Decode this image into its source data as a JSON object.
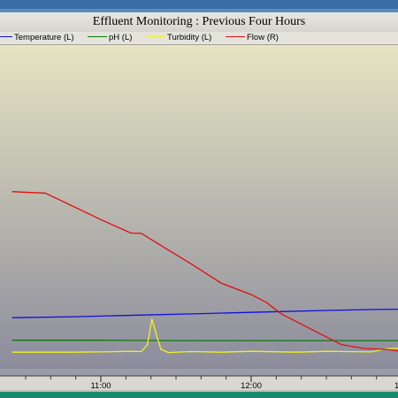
{
  "window": {
    "title": "Effluent Monitoring : Previous Four Hours"
  },
  "colors": {
    "temperature": "#1010e0",
    "ph": "#0a7a0a",
    "turbidity": "#f0f020",
    "flow": "#e01010",
    "plot_top": "#e6e4c2",
    "plot_bottom": "#8c8c9c"
  },
  "chart_data": {
    "type": "line",
    "title": "Effluent Monitoring : Previous Four Hours",
    "x_ticks": [
      "11:00",
      "12:00",
      "1"
    ],
    "legend_position": "top",
    "grid": false,
    "series": [
      {
        "name": "Temperature (L)",
        "key": "temperature",
        "points": [
          [
            10.41,
            14.6
          ],
          [
            10.83,
            14.9
          ],
          [
            11.25,
            15.4
          ],
          [
            11.67,
            15.9
          ],
          [
            12.08,
            16.4
          ],
          [
            12.5,
            16.9
          ],
          [
            12.83,
            17.2
          ],
          [
            13.0,
            17.3
          ]
        ]
      },
      {
        "name": "pH (L)",
        "key": "ph",
        "points": [
          [
            10.41,
            7.4
          ],
          [
            11.0,
            7.4
          ],
          [
            11.5,
            7.3
          ],
          [
            12.0,
            7.3
          ],
          [
            12.5,
            7.3
          ],
          [
            13.0,
            7.3
          ]
        ]
      },
      {
        "name": "Turbidity (L)",
        "key": "turbidity",
        "points": [
          [
            10.41,
            3.6
          ],
          [
            10.8,
            3.6
          ],
          [
            11.0,
            3.7
          ],
          [
            11.2,
            3.9
          ],
          [
            11.27,
            3.8
          ],
          [
            11.31,
            6.0
          ],
          [
            11.34,
            14.1
          ],
          [
            11.37,
            9.0
          ],
          [
            11.4,
            4.5
          ],
          [
            11.45,
            3.5
          ],
          [
            11.6,
            3.8
          ],
          [
            11.8,
            3.6
          ],
          [
            12.0,
            3.9
          ],
          [
            12.3,
            3.6
          ],
          [
            12.5,
            3.9
          ],
          [
            12.8,
            3.7
          ],
          [
            12.9,
            4.7
          ],
          [
            13.0,
            4.9
          ]
        ]
      },
      {
        "name": "Flow (R)",
        "key": "flow",
        "points": [
          [
            10.41,
            81.5
          ],
          [
            10.55,
            81.0
          ],
          [
            10.63,
            80.8
          ],
          [
            10.8,
            74.5
          ],
          [
            11.0,
            67.0
          ],
          [
            11.1,
            63.5
          ],
          [
            11.2,
            60.0
          ],
          [
            11.27,
            59.8
          ],
          [
            11.4,
            53.5
          ],
          [
            11.6,
            44.0
          ],
          [
            11.8,
            34.0
          ],
          [
            12.0,
            28.0
          ],
          [
            12.1,
            24.0
          ],
          [
            12.2,
            18.0
          ],
          [
            12.4,
            10.0
          ],
          [
            12.6,
            2.0
          ],
          [
            12.75,
            0.0
          ],
          [
            12.9,
            -0.5
          ],
          [
            13.0,
            -1.5
          ]
        ]
      }
    ],
    "x_range": [
      10.41,
      13.0
    ],
    "y_left_range": [
      0,
      50
    ],
    "y_right_range": [
      -20,
      110
    ]
  }
}
